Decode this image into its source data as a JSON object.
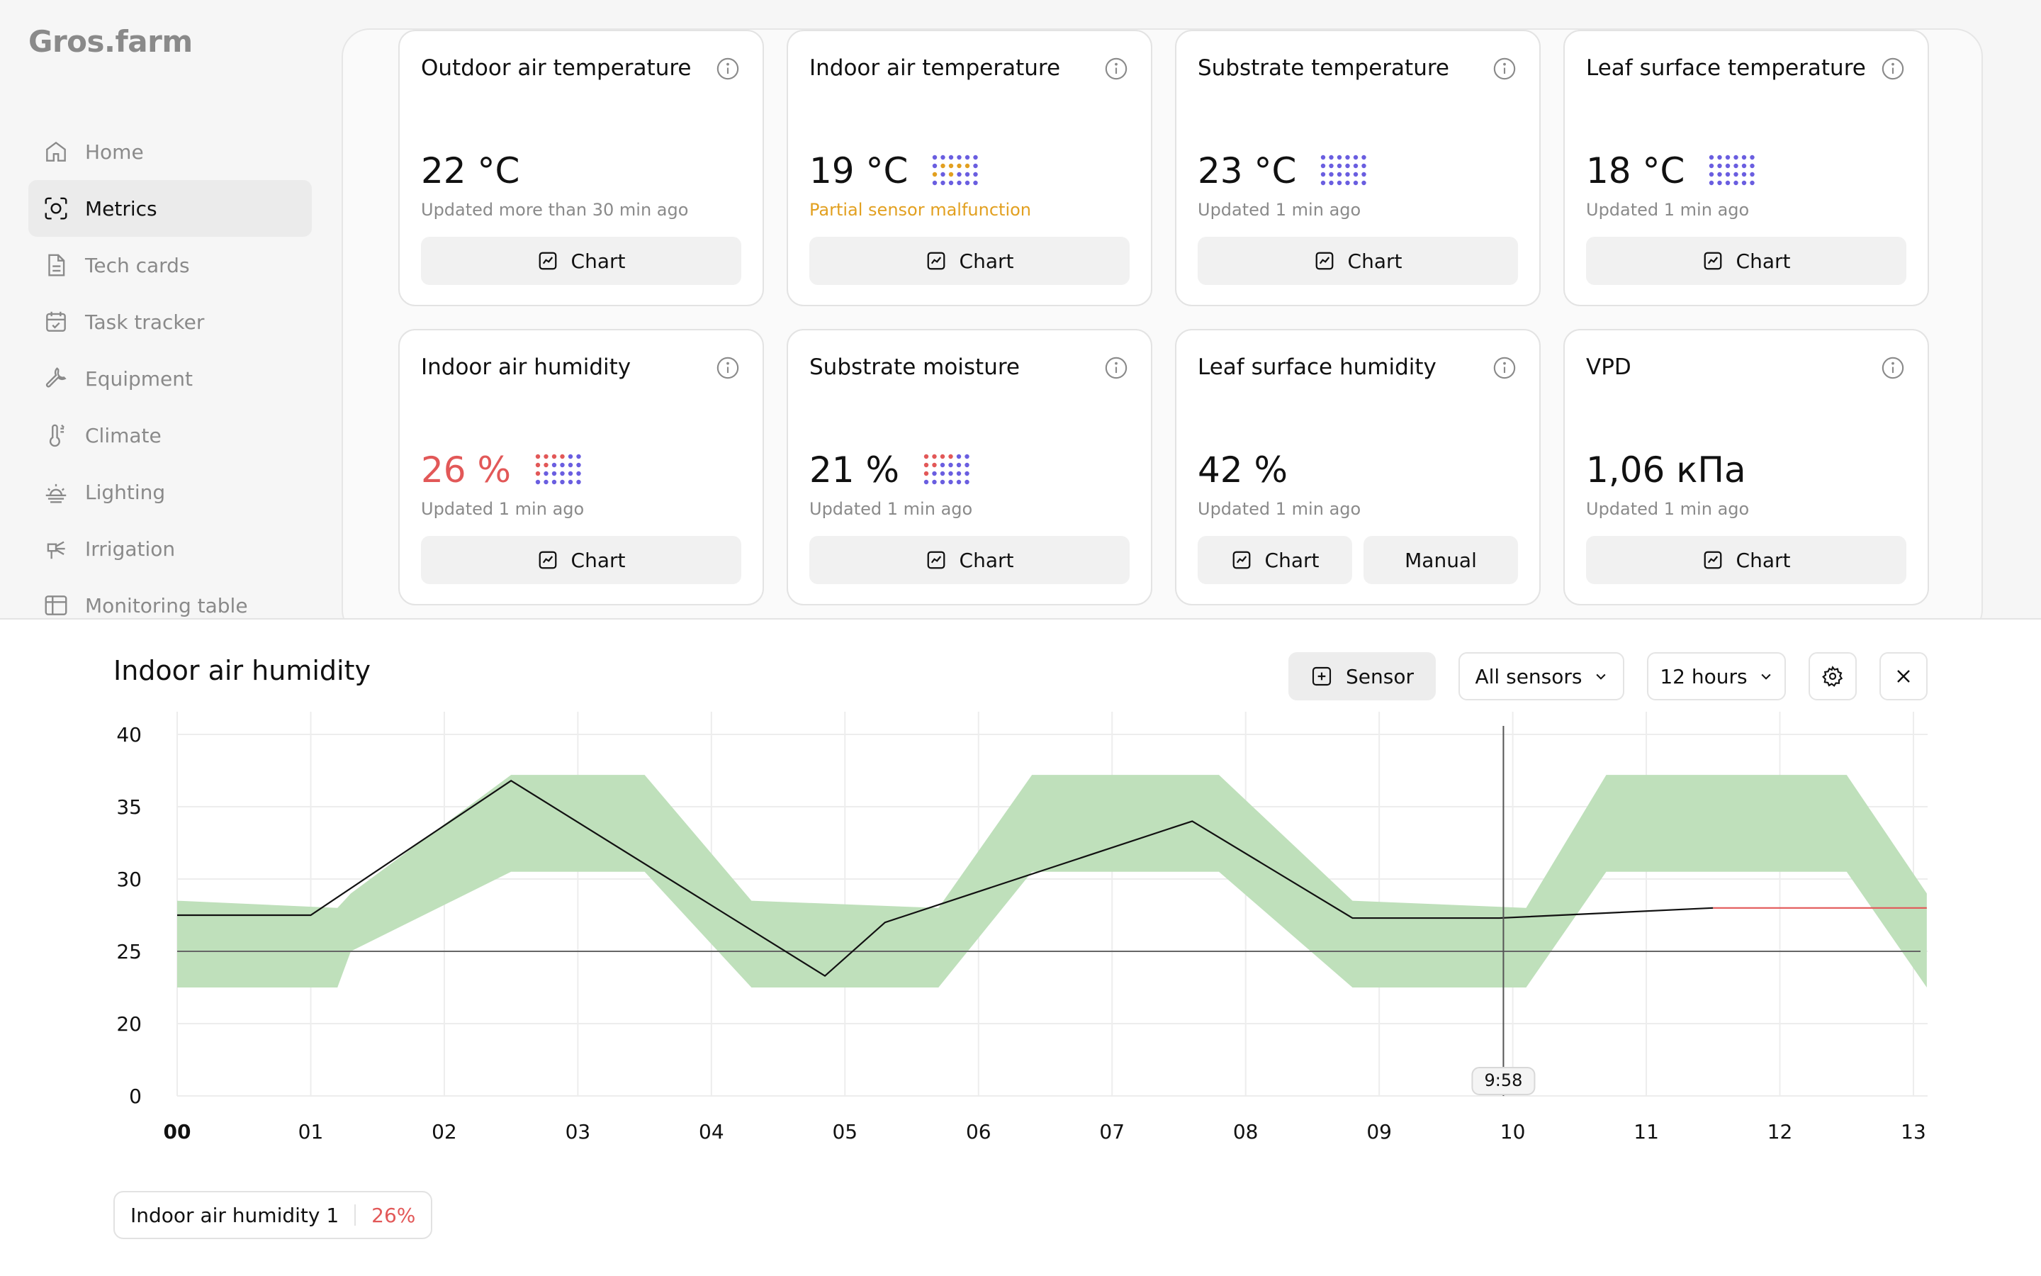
{
  "app": {
    "logo": "Gros.farm"
  },
  "sidebar": {
    "items": [
      {
        "label": "Home",
        "icon": "home-icon"
      },
      {
        "label": "Metrics",
        "icon": "metrics-icon",
        "active": true
      },
      {
        "label": "Tech cards",
        "icon": "document-icon"
      },
      {
        "label": "Task tracker",
        "icon": "calendar-icon"
      },
      {
        "label": "Equipment",
        "icon": "wrench-icon"
      },
      {
        "label": "Climate",
        "icon": "thermometer-icon"
      },
      {
        "label": "Lighting",
        "icon": "sunrise-icon"
      },
      {
        "label": "Irrigation",
        "icon": "sprinkler-icon"
      },
      {
        "label": "Monitoring table",
        "icon": "table-icon"
      }
    ]
  },
  "metrics": {
    "chart_label": "Chart",
    "manual_label": "Manual",
    "cards": [
      {
        "title": "Outdoor air temperature",
        "value": "22 °C",
        "status": "Updated more than 30 min ago"
      },
      {
        "title": "Indoor air temperature",
        "value": "19 °C",
        "status": "Partial sensor malfunction",
        "status_color": "#e2a020"
      },
      {
        "title": "Substrate temperature",
        "value": "23 °C",
        "status": "Updated 1 min ago"
      },
      {
        "title": "Leaf surface temperature",
        "value": "18 °C",
        "status": "Updated 1 min ago"
      },
      {
        "title": "Indoor air humidity",
        "value": "26 %",
        "status": "Updated 1 min ago",
        "value_color": "#e25858"
      },
      {
        "title": "Substrate moisture",
        "value": "21 %",
        "status": "Updated 1 min ago"
      },
      {
        "title": "Leaf surface humidity",
        "value": "42 %",
        "status": "Updated 1 min ago"
      },
      {
        "title": "VPD",
        "value": "1,06 кПа",
        "status": "Updated 1 min ago"
      }
    ]
  },
  "chart_panel": {
    "title": "Indoor air humidity",
    "sensor_button": "Sensor",
    "sensor_select": "All sensors",
    "period_select": "12 hours",
    "legend": {
      "name": "Indoor air humidity 1",
      "value": "26%"
    }
  },
  "colors": {
    "accent_alert": "#e25858",
    "warning": "#e2a020",
    "band_fill": "#bfe0bb",
    "dots_blue": "#6a5ee0"
  },
  "chart_data": {
    "type": "line",
    "x_ticks": [
      "00",
      "01",
      "02",
      "03",
      "04",
      "05",
      "06",
      "07",
      "08",
      "09",
      "10",
      "11",
      "12",
      "13"
    ],
    "y_ticks": [
      0,
      20,
      25,
      30,
      35,
      40
    ],
    "ylim": [
      0,
      40
    ],
    "cursor_label": "9:58",
    "cursor_x": 9.93,
    "threshold": 25,
    "series": [
      {
        "name": "Indoor air humidity 1",
        "x": [
          0,
          1,
          2.5,
          4.85,
          5.3,
          7.6,
          8.8,
          9.9,
          11.5
        ],
        "values": [
          27.5,
          27.5,
          36.8,
          23.3,
          27,
          34,
          27.3,
          27.3,
          28
        ],
        "forecast": {
          "x": [
            11.5,
            13.1
          ],
          "values": [
            28,
            28
          ]
        }
      }
    ],
    "band": {
      "x": [
        0,
        1.2,
        1.3,
        2.5,
        3.5,
        4.3,
        5.7,
        6.4,
        7.8,
        8.8,
        10.1,
        10.7,
        12.5,
        13.1
      ],
      "upper": [
        28.5,
        28,
        29,
        37.2,
        37.2,
        28.5,
        28,
        37.2,
        37.2,
        28.5,
        28,
        37.2,
        37.2,
        29
      ],
      "lower": [
        22.5,
        22.5,
        25,
        30.5,
        30.5,
        22.5,
        22.5,
        30.5,
        30.5,
        22.5,
        22.5,
        30.5,
        30.5,
        22.5
      ]
    }
  }
}
